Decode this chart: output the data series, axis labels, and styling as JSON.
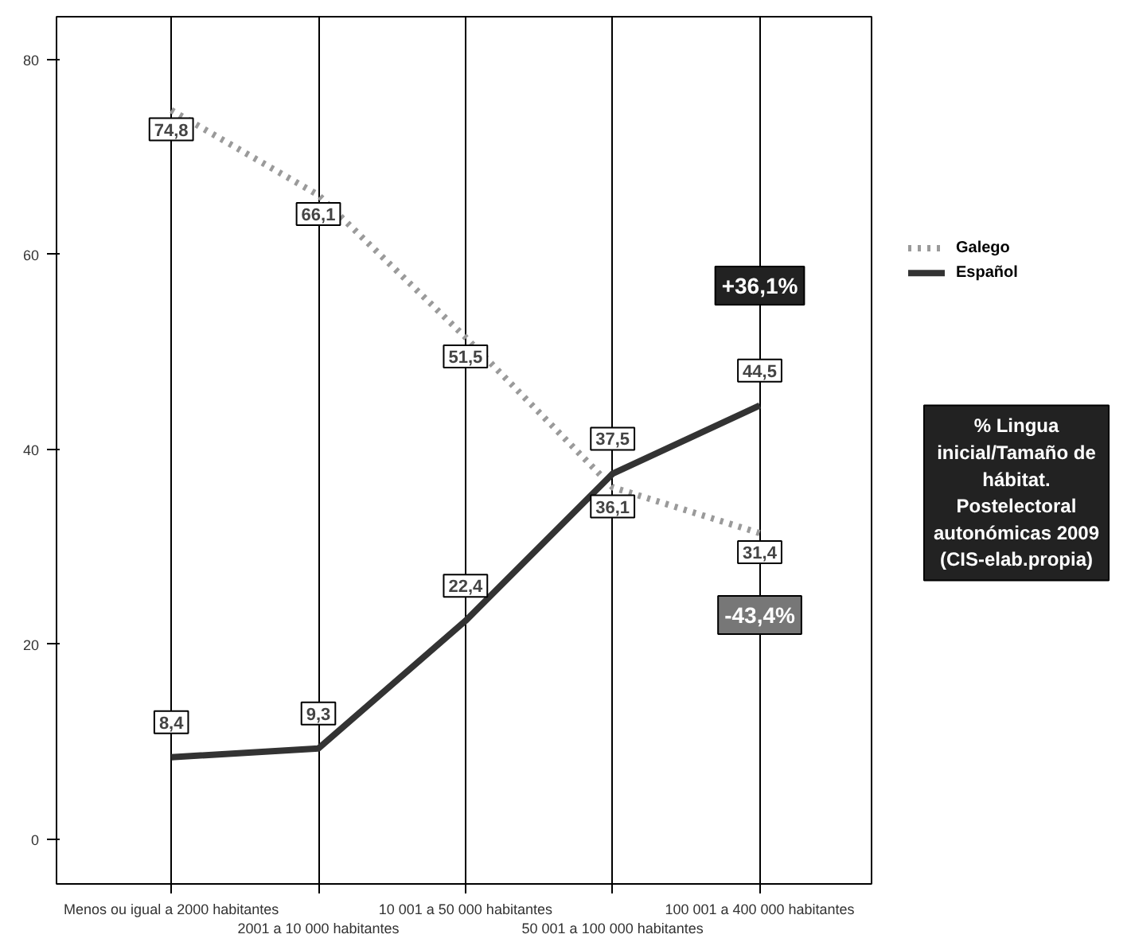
{
  "chart_data": {
    "type": "line",
    "title": "% Lingua inicial/Tamaño de hábitat. Postelectoral autonómicas 2009 (CIS-elab.propia)",
    "categories": [
      "Menos ou igual a 2000 habitantes",
      "2001 a 10 000 habitantes",
      "10 001 a 50 000 habitantes",
      "50 001 a 100 000 habitantes",
      "100 001 a 400 000 habitantes"
    ],
    "series": [
      {
        "name": "Galego",
        "color": "#9a9a9a",
        "line_style": "dotted",
        "values": [
          74.8,
          66.1,
          51.5,
          36.1,
          31.4
        ],
        "value_labels": [
          "74,8",
          "66,1",
          "51,5",
          "36,1",
          "31,4"
        ]
      },
      {
        "name": "Español",
        "color": "#333333",
        "line_style": "solid",
        "values": [
          8.4,
          9.3,
          22.4,
          37.5,
          44.5
        ],
        "value_labels": [
          "8,4",
          "9,3",
          "22,4",
          "37,5",
          "44,5"
        ]
      }
    ],
    "ylim": [
      -4.6,
      84.4
    ],
    "yticks": [
      0,
      20,
      40,
      60,
      80
    ],
    "grid": "x",
    "legend": "right",
    "annotations": [
      "+36,1%",
      "-43,4%"
    ]
  }
}
